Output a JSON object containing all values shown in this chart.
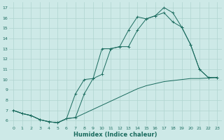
{
  "xlabel": "Humidex (Indice chaleur)",
  "xlim_min": -0.5,
  "xlim_max": 23.5,
  "ylim_min": 5.5,
  "ylim_max": 17.5,
  "yticks": [
    6,
    7,
    8,
    9,
    10,
    11,
    12,
    13,
    14,
    15,
    16,
    17
  ],
  "xticks": [
    0,
    1,
    2,
    3,
    4,
    5,
    6,
    7,
    8,
    9,
    10,
    11,
    12,
    13,
    14,
    15,
    16,
    17,
    18,
    19,
    20,
    21,
    22,
    23
  ],
  "bg_color": "#cde9e7",
  "line_color": "#1a6b5e",
  "grid_color": "#b0d4d0",
  "line1_y": [
    7.0,
    6.7,
    6.5,
    6.1,
    5.9,
    5.8,
    6.2,
    6.3,
    8.6,
    10.1,
    13.0,
    13.0,
    13.2,
    14.8,
    16.1,
    15.9,
    16.2,
    17.0,
    16.5,
    15.1,
    13.4,
    11.0,
    10.2,
    10.2
  ],
  "line2_y": [
    7.0,
    6.7,
    6.5,
    6.1,
    5.9,
    5.8,
    6.2,
    8.6,
    10.0,
    10.1,
    10.5,
    13.0,
    13.2,
    13.2,
    14.8,
    15.9,
    16.2,
    16.5,
    15.6,
    15.1,
    13.4,
    11.0,
    10.2,
    10.2
  ],
  "line3_y": [
    7.0,
    6.7,
    6.5,
    6.1,
    5.9,
    5.8,
    6.2,
    6.3,
    6.7,
    7.1,
    7.5,
    7.9,
    8.3,
    8.7,
    9.1,
    9.4,
    9.6,
    9.8,
    9.9,
    10.0,
    10.1,
    10.1,
    10.15,
    10.2
  ],
  "xlabel_fontsize": 6.0,
  "tick_fontsize": 4.5
}
